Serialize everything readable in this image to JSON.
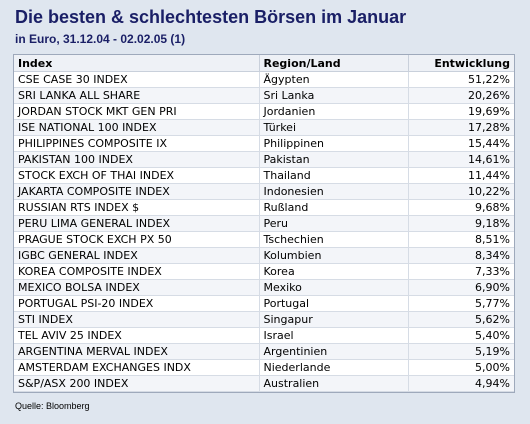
{
  "chart_data": {
    "type": "table",
    "title": "Die besten & schlechtesten Börsen im Januar",
    "subtitle": "in Euro, 31.12.04 - 02.02.05  (1)",
    "columns": [
      "Index",
      "Region/Land",
      "Entwicklung"
    ],
    "rows": [
      [
        "CSE CASE 30 INDEX",
        "Ägypten",
        "51,22%"
      ],
      [
        "SRI LANKA ALL SHARE",
        "Sri Lanka",
        "20,26%"
      ],
      [
        "JORDAN STOCK MKT GEN PRI",
        "Jordanien",
        "19,69%"
      ],
      [
        "ISE NATIONAL 100 INDEX",
        "Türkei",
        "17,28%"
      ],
      [
        "PHILIPPINES COMPOSITE IX",
        "Philippinen",
        "15,44%"
      ],
      [
        "PAKISTAN 100 INDEX",
        "Pakistan",
        "14,61%"
      ],
      [
        "STOCK EXCH OF THAI INDEX",
        "Thailand",
        "11,44%"
      ],
      [
        "JAKARTA COMPOSITE INDEX",
        "Indonesien",
        "10,22%"
      ],
      [
        "RUSSIAN RTS INDEX $",
        "Rußland",
        "9,68%"
      ],
      [
        "PERU LIMA GENERAL INDEX",
        "Peru",
        "9,18%"
      ],
      [
        "PRAGUE STOCK EXCH PX 50",
        "Tschechien",
        "8,51%"
      ],
      [
        "IGBC GENERAL INDEX",
        "Kolumbien",
        "8,34%"
      ],
      [
        "KOREA COMPOSITE INDEX",
        "Korea",
        "7,33%"
      ],
      [
        "MEXICO BOLSA INDEX",
        "Mexiko",
        "6,90%"
      ],
      [
        "PORTUGAL PSI-20 INDEX",
        "Portugal",
        "5,77%"
      ],
      [
        "STI INDEX",
        "Singapur",
        "5,62%"
      ],
      [
        "TEL AVIV 25 INDEX",
        "Israel",
        "5,40%"
      ],
      [
        "ARGENTINA MERVAL INDEX",
        "Argentinien",
        "5,19%"
      ],
      [
        "AMSTERDAM EXCHANGES INDX",
        "Niederlande",
        "5,00%"
      ],
      [
        "S&P/ASX 200 INDEX",
        "Australien",
        "4,94%"
      ]
    ],
    "source": "Quelle: Bloomberg"
  },
  "colors": {
    "background": "#dfe6ef",
    "title": "#1a1f66",
    "table_border": "#9ea9bb"
  }
}
